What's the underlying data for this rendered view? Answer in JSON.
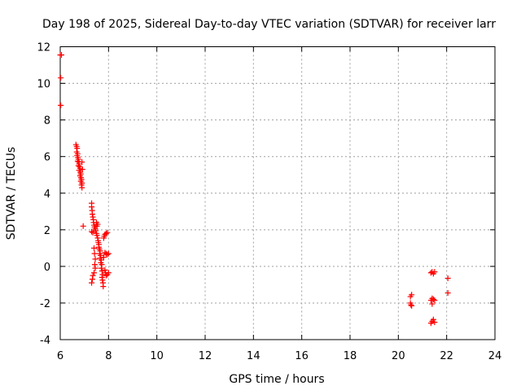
{
  "chart_data": {
    "type": "scatter",
    "title": "Day 198 of 2025, Sidereal Day-to-day VTEC variation (SDTVAR) for receiver larr",
    "xlabel": "GPS time / hours",
    "ylabel": "SDTVAR / TECUs",
    "xlim": [
      6,
      24
    ],
    "ylim": [
      -4,
      12
    ],
    "xticks": [
      "6",
      "8",
      "10",
      "12",
      "14",
      "16",
      "18",
      "20",
      "22",
      "24"
    ],
    "yticks": [
      "-4",
      "-2",
      "0",
      "2",
      "4",
      "6",
      "8",
      "10",
      "12"
    ],
    "grid": true,
    "marker": "plus",
    "color": "#ff0000",
    "series": [
      {
        "name": "SDTVAR",
        "points": [
          [
            6.0,
            11.55
          ],
          [
            6.05,
            11.55
          ],
          [
            6.02,
            10.3
          ],
          [
            6.02,
            8.8
          ],
          [
            6.65,
            6.65
          ],
          [
            6.68,
            6.55
          ],
          [
            6.7,
            6.45
          ],
          [
            6.68,
            6.25
          ],
          [
            6.72,
            6.15
          ],
          [
            6.7,
            6.05
          ],
          [
            6.73,
            5.95
          ],
          [
            6.75,
            5.85
          ],
          [
            6.72,
            5.75
          ],
          [
            6.77,
            5.7
          ],
          [
            6.78,
            5.6
          ],
          [
            6.75,
            5.5
          ],
          [
            6.8,
            5.45
          ],
          [
            6.82,
            5.35
          ],
          [
            6.78,
            5.25
          ],
          [
            6.83,
            5.15
          ],
          [
            6.85,
            5.05
          ],
          [
            6.82,
            4.95
          ],
          [
            6.86,
            4.85
          ],
          [
            6.88,
            4.75
          ],
          [
            6.85,
            4.65
          ],
          [
            6.9,
            4.55
          ],
          [
            6.88,
            4.45
          ],
          [
            6.9,
            4.3
          ],
          [
            6.92,
            5.3
          ],
          [
            6.9,
            5.7
          ],
          [
            6.95,
            2.2
          ],
          [
            7.3,
            3.45
          ],
          [
            7.3,
            3.25
          ],
          [
            7.32,
            3.05
          ],
          [
            7.33,
            2.85
          ],
          [
            7.35,
            2.7
          ],
          [
            7.37,
            2.55
          ],
          [
            7.38,
            2.4
          ],
          [
            7.4,
            2.25
          ],
          [
            7.42,
            2.15
          ],
          [
            7.45,
            2.05
          ],
          [
            7.47,
            1.95
          ],
          [
            7.3,
            1.9
          ],
          [
            7.35,
            1.85
          ],
          [
            7.5,
            1.8
          ],
          [
            7.52,
            1.7
          ],
          [
            7.5,
            2.4
          ],
          [
            7.55,
            2.3
          ],
          [
            7.52,
            2.2
          ],
          [
            7.55,
            1.55
          ],
          [
            7.57,
            1.4
          ],
          [
            7.58,
            1.3
          ],
          [
            7.6,
            1.2
          ],
          [
            7.6,
            1.05
          ],
          [
            7.62,
            0.95
          ],
          [
            7.65,
            0.85
          ],
          [
            7.63,
            0.7
          ],
          [
            7.67,
            0.6
          ],
          [
            7.65,
            0.45
          ],
          [
            7.7,
            0.35
          ],
          [
            7.68,
            0.2
          ],
          [
            7.72,
            0.1
          ],
          [
            7.7,
            -0.1
          ],
          [
            7.73,
            -0.25
          ],
          [
            7.75,
            -0.45
          ],
          [
            7.73,
            -0.6
          ],
          [
            7.75,
            -0.75
          ],
          [
            7.77,
            -0.9
          ],
          [
            7.78,
            -1.1
          ],
          [
            7.4,
            1.0
          ],
          [
            7.42,
            0.7
          ],
          [
            7.45,
            0.4
          ],
          [
            7.43,
            0.1
          ],
          [
            7.45,
            -0.1
          ],
          [
            7.4,
            -0.35
          ],
          [
            7.35,
            -0.5
          ],
          [
            7.33,
            -0.7
          ],
          [
            7.3,
            -0.9
          ],
          [
            7.8,
            1.55
          ],
          [
            7.82,
            1.65
          ],
          [
            7.85,
            1.75
          ],
          [
            7.9,
            1.8
          ],
          [
            7.95,
            1.85
          ],
          [
            7.85,
            0.75
          ],
          [
            7.9,
            0.7
          ],
          [
            7.95,
            0.65
          ],
          [
            8.0,
            0.7
          ],
          [
            7.8,
            0.5
          ],
          [
            7.85,
            -0.2
          ],
          [
            7.88,
            -0.35
          ],
          [
            7.9,
            -0.5
          ],
          [
            7.95,
            -0.45
          ],
          [
            8.0,
            -0.35
          ],
          [
            20.5,
            -1.65
          ],
          [
            20.55,
            -1.55
          ],
          [
            20.5,
            -2.0
          ],
          [
            20.52,
            -2.1
          ],
          [
            20.55,
            -2.15
          ],
          [
            21.35,
            -0.35
          ],
          [
            21.4,
            -0.3
          ],
          [
            21.45,
            -0.4
          ],
          [
            21.5,
            -0.3
          ],
          [
            21.35,
            -1.85
          ],
          [
            21.4,
            -1.75
          ],
          [
            21.45,
            -1.8
          ],
          [
            21.5,
            -1.85
          ],
          [
            21.4,
            -2.05
          ],
          [
            21.35,
            -3.1
          ],
          [
            21.4,
            -3.0
          ],
          [
            21.45,
            -2.9
          ],
          [
            21.5,
            -3.05
          ],
          [
            22.05,
            -0.65
          ],
          [
            22.05,
            -1.45
          ]
        ]
      }
    ]
  }
}
